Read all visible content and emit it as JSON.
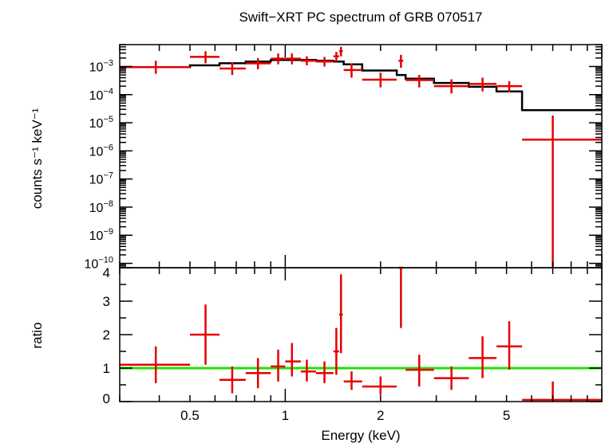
{
  "title": "Swift−XRT PC spectrum of GRB 070517",
  "chart_data": [
    {
      "type": "line",
      "panel": "spectrum",
      "ylabel": "counts s⁻¹ keV⁻¹",
      "yscale": "log",
      "xscale": "log",
      "xlim": [
        0.3,
        10
      ],
      "ylim": [
        7e-11,
        0.006
      ],
      "ytick_labels": [
        {
          "value": 0.001,
          "mant": "10",
          "exp": "−3"
        },
        {
          "value": 0.0001,
          "mant": "10",
          "exp": "−4"
        },
        {
          "value": 1e-05,
          "mant": "10",
          "exp": "−5"
        },
        {
          "value": 1e-06,
          "mant": "10",
          "exp": "−6"
        },
        {
          "value": 1e-07,
          "mant": "10",
          "exp": "−7"
        },
        {
          "value": 1e-08,
          "mant": "10",
          "exp": "−8"
        },
        {
          "value": 1e-09,
          "mant": "10",
          "exp": "−9"
        },
        {
          "value": 1e-10,
          "mant": "10",
          "exp": "−10"
        }
      ],
      "series": [
        {
          "name": "data",
          "style": "crosses",
          "color": "#e60000",
          "points": [
            {
              "x": 0.39,
              "xlo": 0.3,
              "xhi": 0.5,
              "y": 0.00095,
              "ylo": 0.00055,
              "yhi": 0.0016
            },
            {
              "x": 0.56,
              "xlo": 0.5,
              "xhi": 0.62,
              "y": 0.0022,
              "ylo": 0.0013,
              "yhi": 0.0035
            },
            {
              "x": 0.68,
              "xlo": 0.62,
              "xhi": 0.75,
              "y": 0.00085,
              "ylo": 0.0005,
              "yhi": 0.0014
            },
            {
              "x": 0.82,
              "xlo": 0.75,
              "xhi": 0.9,
              "y": 0.0013,
              "ylo": 0.0008,
              "yhi": 0.002
            },
            {
              "x": 0.95,
              "xlo": 0.9,
              "xhi": 1.0,
              "y": 0.0019,
              "ylo": 0.0012,
              "yhi": 0.0029
            },
            {
              "x": 1.05,
              "xlo": 1.0,
              "xhi": 1.12,
              "y": 0.0019,
              "ylo": 0.0012,
              "yhi": 0.0029
            },
            {
              "x": 1.17,
              "xlo": 1.12,
              "xhi": 1.25,
              "y": 0.0016,
              "ylo": 0.0011,
              "yhi": 0.0023
            },
            {
              "x": 1.33,
              "xlo": 1.25,
              "xhi": 1.42,
              "y": 0.0015,
              "ylo": 0.001,
              "yhi": 0.0022
            },
            {
              "x": 1.45,
              "xlo": 1.42,
              "xhi": 1.48,
              "y": 0.0023,
              "ylo": 0.0015,
              "yhi": 0.0033
            },
            {
              "x": 1.5,
              "xlo": 1.48,
              "xhi": 1.52,
              "y": 0.0035,
              "ylo": 0.0023,
              "yhi": 0.005
            },
            {
              "x": 1.62,
              "xlo": 1.53,
              "xhi": 1.75,
              "y": 0.00075,
              "ylo": 0.0004,
              "yhi": 0.0013
            },
            {
              "x": 2.0,
              "xlo": 1.75,
              "xhi": 2.25,
              "y": 0.00034,
              "ylo": 0.00018,
              "yhi": 0.0006
            },
            {
              "x": 2.32,
              "xlo": 2.28,
              "xhi": 2.36,
              "y": 0.0016,
              "ylo": 0.0009,
              "yhi": 0.0026
            },
            {
              "x": 2.65,
              "xlo": 2.4,
              "xhi": 2.95,
              "y": 0.00033,
              "ylo": 0.00018,
              "yhi": 0.0005
            },
            {
              "x": 3.35,
              "xlo": 2.95,
              "xhi": 3.8,
              "y": 0.0002,
              "ylo": 0.00011,
              "yhi": 0.00035
            },
            {
              "x": 4.2,
              "xlo": 3.8,
              "xhi": 4.65,
              "y": 0.00024,
              "ylo": 0.00013,
              "yhi": 0.0004
            },
            {
              "x": 5.1,
              "xlo": 4.65,
              "xhi": 5.6,
              "y": 0.0002,
              "ylo": 0.00012,
              "yhi": 0.0003
            },
            {
              "x": 7.0,
              "xlo": 5.6,
              "xhi": 10.0,
              "y": 2.5e-06,
              "ylo": 7e-11,
              "yhi": 1.8e-05
            }
          ]
        },
        {
          "name": "model",
          "style": "step",
          "color": "#000000",
          "bins": [
            {
              "xlo": 0.3,
              "xhi": 0.5,
              "y": 0.00095
            },
            {
              "xlo": 0.5,
              "xhi": 0.62,
              "y": 0.0011
            },
            {
              "xlo": 0.62,
              "xhi": 0.75,
              "y": 0.0013
            },
            {
              "xlo": 0.75,
              "xhi": 0.9,
              "y": 0.0015
            },
            {
              "xlo": 0.9,
              "xhi": 1.0,
              "y": 0.0017
            },
            {
              "xlo": 1.0,
              "xhi": 1.12,
              "y": 0.0017
            },
            {
              "xlo": 1.12,
              "xhi": 1.25,
              "y": 0.0017
            },
            {
              "xlo": 1.25,
              "xhi": 1.42,
              "y": 0.0016
            },
            {
              "xlo": 1.42,
              "xhi": 1.53,
              "y": 0.0015
            },
            {
              "xlo": 1.53,
              "xhi": 1.75,
              "y": 0.0012
            },
            {
              "xlo": 1.75,
              "xhi": 2.25,
              "y": 0.00072
            },
            {
              "xlo": 2.25,
              "xhi": 2.4,
              "y": 0.0005
            },
            {
              "xlo": 2.4,
              "xhi": 2.95,
              "y": 0.00037
            },
            {
              "xlo": 2.95,
              "xhi": 3.8,
              "y": 0.00026
            },
            {
              "xlo": 3.8,
              "xhi": 4.65,
              "y": 0.00019
            },
            {
              "xlo": 4.65,
              "xhi": 5.6,
              "y": 0.00013
            },
            {
              "xlo": 5.6,
              "xhi": 10.0,
              "y": 2.8e-05
            }
          ]
        }
      ]
    },
    {
      "type": "scatter",
      "panel": "ratio",
      "xlabel": "Energy (keV)",
      "ylabel": "ratio",
      "xscale": "log",
      "xlim": [
        0.3,
        10
      ],
      "ylim": [
        0,
        4
      ],
      "xticks": [
        0.5,
        1,
        2,
        5
      ],
      "xtick_labels": [
        "0.5",
        "1",
        "2",
        "5"
      ],
      "yticks": [
        0,
        1,
        2,
        3,
        4
      ],
      "ytick_labels": [
        "0",
        "1",
        "2",
        "3",
        "4"
      ],
      "reference_line": {
        "y": 1,
        "color": "#22e000"
      },
      "series": [
        {
          "name": "ratio",
          "style": "crosses",
          "color": "#e60000",
          "points": [
            {
              "x": 0.39,
              "xlo": 0.3,
              "xhi": 0.5,
              "y": 1.1,
              "ylo": 0.55,
              "yhi": 1.65
            },
            {
              "x": 0.56,
              "xlo": 0.5,
              "xhi": 0.62,
              "y": 2.0,
              "ylo": 1.1,
              "yhi": 2.9
            },
            {
              "x": 0.68,
              "xlo": 0.62,
              "xhi": 0.75,
              "y": 0.65,
              "ylo": 0.25,
              "yhi": 1.05
            },
            {
              "x": 0.82,
              "xlo": 0.75,
              "xhi": 0.9,
              "y": 0.85,
              "ylo": 0.4,
              "yhi": 1.3
            },
            {
              "x": 0.95,
              "xlo": 0.9,
              "xhi": 1.0,
              "y": 1.05,
              "ylo": 0.6,
              "yhi": 1.55
            },
            {
              "x": 1.05,
              "xlo": 1.0,
              "xhi": 1.12,
              "y": 1.2,
              "ylo": 0.75,
              "yhi": 1.75
            },
            {
              "x": 1.17,
              "xlo": 1.12,
              "xhi": 1.25,
              "y": 0.9,
              "ylo": 0.6,
              "yhi": 1.25
            },
            {
              "x": 1.33,
              "xlo": 1.25,
              "xhi": 1.42,
              "y": 0.85,
              "ylo": 0.55,
              "yhi": 1.2
            },
            {
              "x": 1.45,
              "xlo": 1.42,
              "xhi": 1.48,
              "y": 1.5,
              "ylo": 0.8,
              "yhi": 2.2
            },
            {
              "x": 1.5,
              "xlo": 1.48,
              "xhi": 1.52,
              "y": 2.6,
              "ylo": 1.45,
              "yhi": 3.8
            },
            {
              "x": 1.62,
              "xlo": 1.53,
              "xhi": 1.75,
              "y": 0.6,
              "ylo": 0.35,
              "yhi": 0.9
            },
            {
              "x": 2.0,
              "xlo": 1.75,
              "xhi": 2.25,
              "y": 0.45,
              "ylo": 0.2,
              "yhi": 0.75
            },
            {
              "x": 2.32,
              "xlo": 2.28,
              "xhi": 2.36,
              "y": 4.0,
              "ylo": 2.2,
              "yhi": 4.0
            },
            {
              "x": 2.65,
              "xlo": 2.4,
              "xhi": 2.95,
              "y": 0.95,
              "ylo": 0.45,
              "yhi": 1.4
            },
            {
              "x": 3.35,
              "xlo": 2.95,
              "xhi": 3.8,
              "y": 0.7,
              "ylo": 0.35,
              "yhi": 1.05
            },
            {
              "x": 4.2,
              "xlo": 3.8,
              "xhi": 4.65,
              "y": 1.3,
              "ylo": 0.7,
              "yhi": 1.95
            },
            {
              "x": 5.1,
              "xlo": 4.65,
              "xhi": 5.6,
              "y": 1.65,
              "ylo": 0.95,
              "yhi": 2.4
            },
            {
              "x": 7.0,
              "xlo": 5.6,
              "xhi": 10.0,
              "y": 0.05,
              "ylo": 0.0,
              "yhi": 0.6
            }
          ]
        }
      ]
    }
  ]
}
